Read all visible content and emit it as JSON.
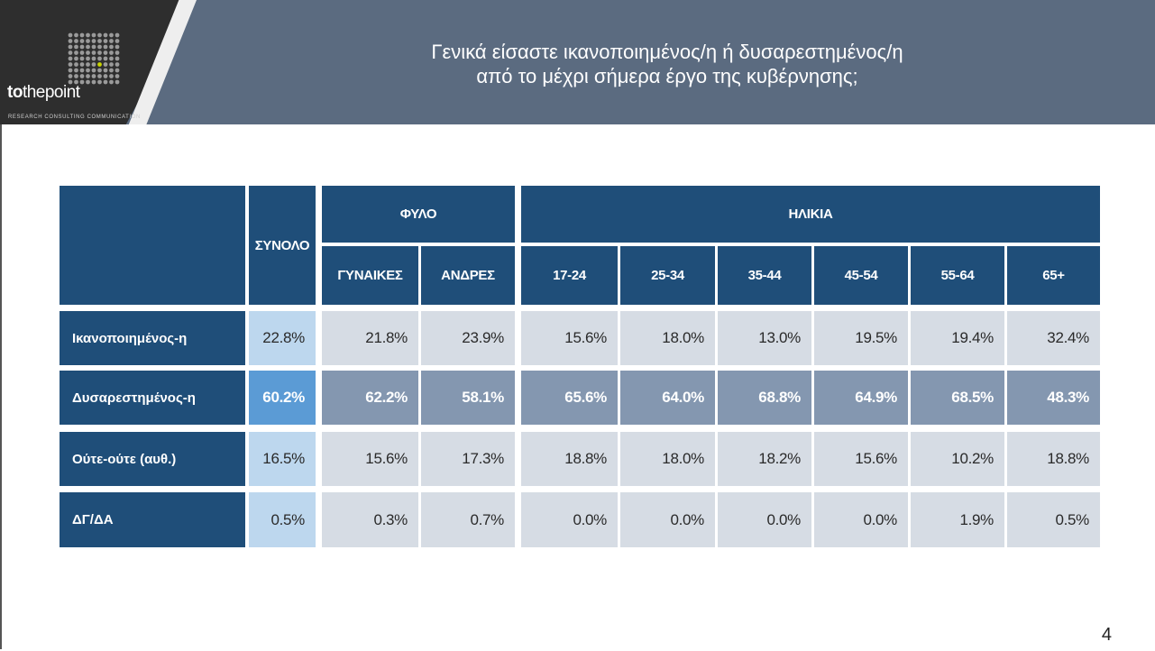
{
  "header": {
    "title_lines": [
      "Γενικά είσαστε ικανοποιημένος/η ή δυσαρεστημένος/η",
      "από το μέχρι σήμερα έργο της κυβέρνησης;"
    ],
    "logo": {
      "brand_pre": "to",
      "brand_mid": "the",
      "brand_post": "point",
      "tagline": "RESEARCH  CONSULTING  COMMUNICATION"
    }
  },
  "page_number": "4",
  "colors": {
    "header_band": "#5b6b80",
    "table_header": "#1f4e79",
    "cell_light": "#d6dce4",
    "cell_dark": "#8497b0",
    "total_light": "#bdd7ee",
    "total_dark": "#5b9bd5",
    "logo_accent": "#c8d400"
  },
  "chart_data": {
    "type": "table",
    "group_headers": {
      "total": "ΣΥΝΟΛΟ",
      "gender": "ΦΥΛΟ",
      "age": "ΗΛΙΚΙΑ"
    },
    "columns": [
      "ΣΥΝΟΛΟ",
      "ΓΥΝΑΙΚΕΣ",
      "ΑΝΔΡΕΣ",
      "17-24",
      "25-34",
      "35-44",
      "45-54",
      "55-64",
      "65+"
    ],
    "rows": [
      {
        "label": "Ικανοποιημένος-η",
        "values": [
          "22.8%",
          "21.8%",
          "23.9%",
          "15.6%",
          "18.0%",
          "13.0%",
          "19.5%",
          "19.4%",
          "32.4%"
        ]
      },
      {
        "label": "Δυσαρεστημένος-η",
        "values": [
          "60.2%",
          "62.2%",
          "58.1%",
          "65.6%",
          "64.0%",
          "68.8%",
          "64.9%",
          "68.5%",
          "48.3%"
        ]
      },
      {
        "label": "Ούτε-ούτε (αυθ.)",
        "values": [
          "16.5%",
          "15.6%",
          "17.3%",
          "18.8%",
          "18.0%",
          "18.2%",
          "15.6%",
          "10.2%",
          "18.8%"
        ]
      },
      {
        "label": "ΔΓ/ΔΑ",
        "values": [
          "0.5%",
          "0.3%",
          "0.7%",
          "0.0%",
          "0.0%",
          "0.0%",
          "0.0%",
          "1.9%",
          "0.5%"
        ]
      }
    ],
    "highlight_row": 1
  }
}
